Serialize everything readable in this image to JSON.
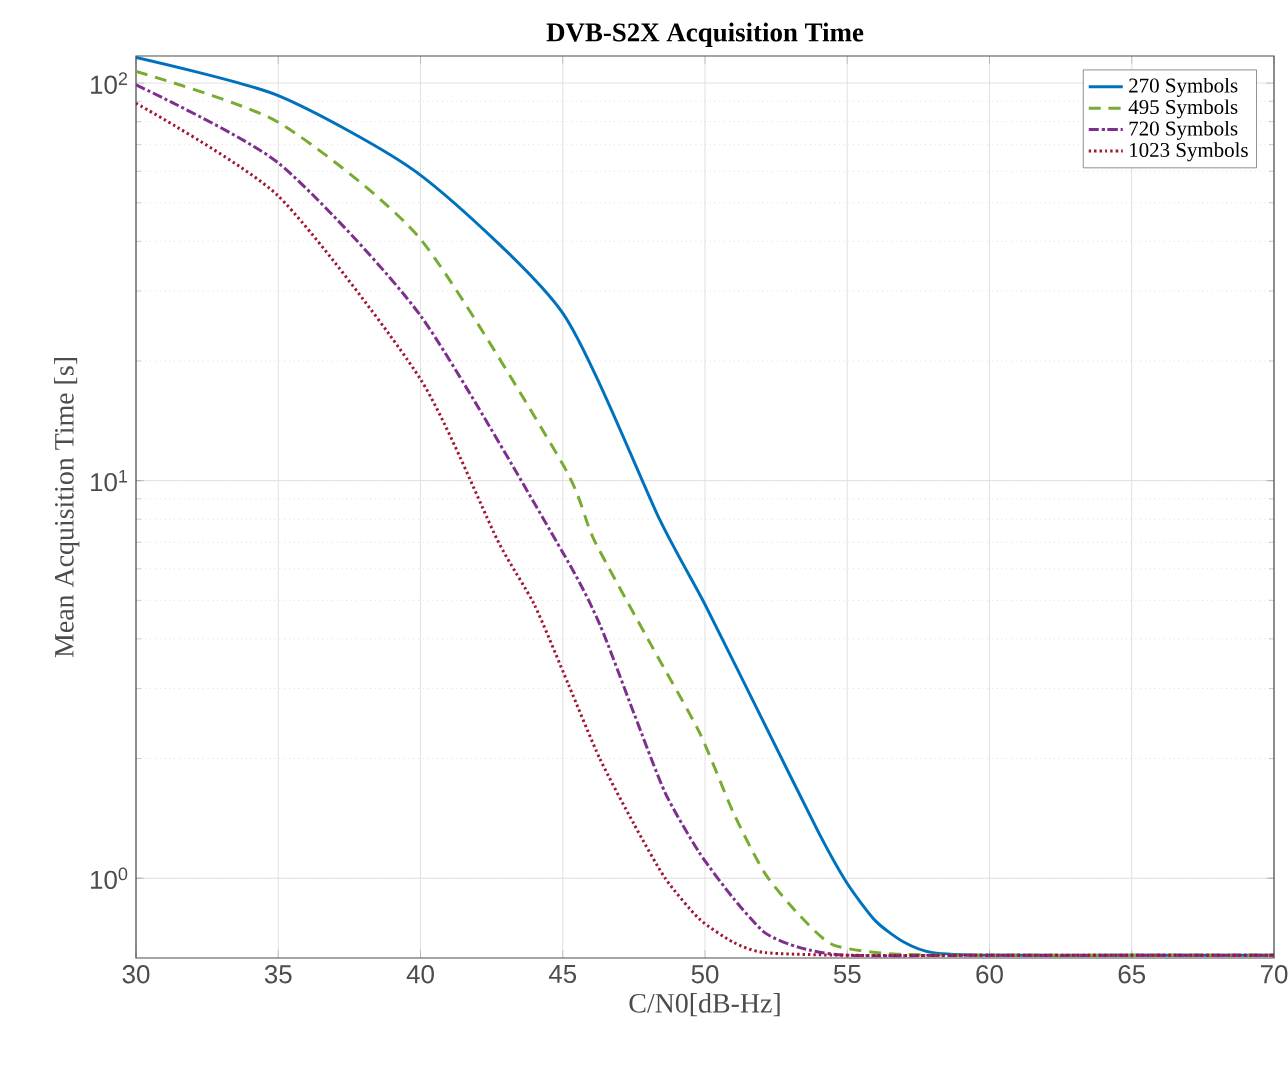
{
  "chart_data": {
    "type": "line",
    "title": "DVB-S2X Acquisition Time",
    "xlabel": "C/N0[dB-Hz]",
    "ylabel": "Mean Acquisition Time [s]",
    "log": "y",
    "grid": true,
    "legend": "top right",
    "xlim": [
      30,
      70
    ],
    "xticks": [
      30,
      35,
      40,
      45,
      50,
      55,
      60,
      65,
      70
    ],
    "ylim": [
      0.63,
      117
    ],
    "yticks": [
      {
        "value": 1,
        "label": "10$^{0}$"
      },
      {
        "value": 10,
        "label": "10$^{1}$"
      },
      {
        "value": 100,
        "label": "10$^{2}$"
      }
    ],
    "series": [
      {
        "name": "270 Symbols",
        "color": "#0072bd",
        "line_style": "solid",
        "x": [
          30,
          35,
          40,
          45,
          48.4,
          50,
          52,
          54,
          55,
          56,
          57,
          58,
          60,
          65,
          70
        ],
        "values": [
          116,
          93,
          58.7,
          26.4,
          8.0,
          4.88,
          2.52,
          1.3,
          0.97,
          0.78,
          0.69,
          0.65,
          0.64,
          0.64,
          0.64
        ]
      },
      {
        "name": "495 Symbols",
        "color": "#77ac30",
        "line_style": "dashed",
        "x": [
          30,
          35,
          40,
          45,
          46.1,
          48.1,
          49.8,
          51,
          52.1,
          53.3,
          54.5,
          56.6,
          60,
          65,
          70
        ],
        "values": [
          107,
          79.7,
          40.5,
          11,
          7.1,
          3.87,
          2.33,
          1.46,
          1.03,
          0.81,
          0.68,
          0.645,
          0.64,
          0.64,
          0.64
        ]
      },
      {
        "name": "720 Symbols",
        "color": "#7e2f8e",
        "line_style": "dashdot",
        "x": [
          30,
          35,
          40,
          45,
          46.3,
          47.5,
          48.6,
          49.8,
          51,
          52.1,
          53.3,
          55,
          60,
          65,
          70
        ],
        "values": [
          99,
          63,
          26,
          6.6,
          4.35,
          2.6,
          1.64,
          1.16,
          0.89,
          0.73,
          0.67,
          0.64,
          0.64,
          0.64,
          0.64
        ]
      },
      {
        "name": "1023 Symbols",
        "color": "#a2142f",
        "line_style": "dotted",
        "x": [
          30,
          35,
          40,
          42.7,
          44,
          45.2,
          46.3,
          47.5,
          48.6,
          49.8,
          51,
          52.1,
          55,
          60,
          65,
          70
        ],
        "values": [
          89,
          52,
          18,
          7.1,
          4.88,
          3.07,
          2.0,
          1.37,
          1.0,
          0.79,
          0.69,
          0.65,
          0.64,
          0.64,
          0.64,
          0.64
        ]
      }
    ]
  }
}
